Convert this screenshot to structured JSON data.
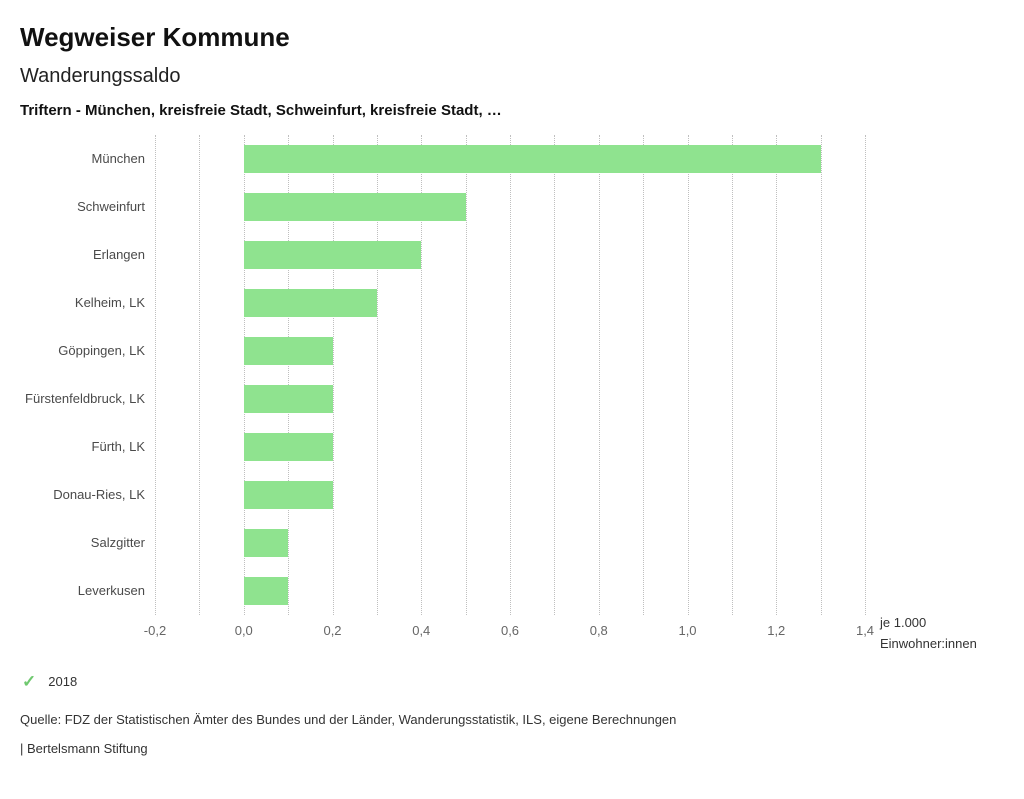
{
  "header": {
    "title": "Wegweiser Kommune",
    "subtitle": "Wanderungssaldo",
    "selection": "Triftern - München, kreisfreie Stadt, Schweinfurt, kreisfreie Stadt, …"
  },
  "chart_data": {
    "type": "bar",
    "orientation": "horizontal",
    "title": "Wanderungssaldo",
    "categories": [
      "München",
      "Schweinfurt",
      "Erlangen",
      "Kelheim, LK",
      "Göppingen, LK",
      "Fürstenfeldbruck, LK",
      "Fürth, LK",
      "Donau-Ries, LK",
      "Salzgitter",
      "Leverkusen"
    ],
    "values": [
      1.3,
      0.5,
      0.4,
      0.3,
      0.2,
      0.2,
      0.2,
      0.2,
      0.1,
      0.1
    ],
    "series_name": "2018",
    "xlim": [
      -0.2,
      1.4
    ],
    "x_ticks": [
      -0.2,
      0,
      0.2,
      0.4,
      0.6,
      0.8,
      1.0,
      1.2,
      1.4
    ],
    "x_tick_labels": [
      "-0,2",
      "0,0",
      "0,2",
      "0,4",
      "0,6",
      "0,8",
      "1,0",
      "1,2",
      "1,4"
    ],
    "grid_minor_step": 0.1,
    "grid_style": "dotted-vertical",
    "bar_color": "#8fe38f",
    "axis_unit_line1": "je 1.000",
    "axis_unit_line2": "Einwohner:innen",
    "legend": {
      "label": "2018",
      "marker": "check-icon",
      "marker_color": "#6fc86f",
      "position": "bottom-left"
    }
  },
  "footer": {
    "source": "Quelle: FDZ der Statistischen Ämter des Bundes und der Länder, Wanderungsstatistik, ILS, eigene Berechnungen",
    "brand": "| Bertelsmann Stiftung"
  }
}
